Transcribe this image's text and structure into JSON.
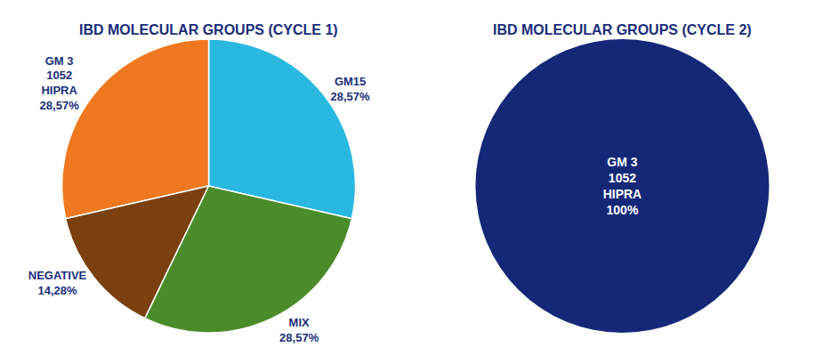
{
  "chart_data": [
    {
      "type": "pie",
      "title": "IBD MOLECULAR GROUPS (CYCLE 1)",
      "categories": [
        "GM15",
        "GM 3\n1052\nHIPRA",
        "NEGATIVE",
        "MIX"
      ],
      "values": [
        28.57,
        28.57,
        14.28,
        28.57
      ],
      "value_labels": [
        "28,57%",
        "28,57%",
        "14,28%",
        "28,57%"
      ],
      "colors": [
        "#2ab8e0",
        "#f07820",
        "#7a4010",
        "#4a8c2a"
      ],
      "data_labels": true
    },
    {
      "type": "pie",
      "title": "IBD MOLECULAR GROUPS (CYCLE 2)",
      "categories": [
        "GM 3\n1052\nHIPRA"
      ],
      "values": [
        100
      ],
      "value_labels": [
        "100%"
      ],
      "colors": [
        "#152878"
      ],
      "data_labels": true
    }
  ]
}
